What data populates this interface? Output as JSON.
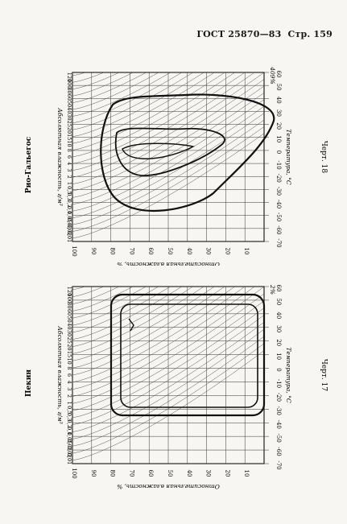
{
  "header": {
    "standard": "ГОСТ 25870—83",
    "page_label": "Стр. 159"
  },
  "chart_data": [
    {
      "type": "line",
      "location": "Рио-Гальегос",
      "figure_label": "Черт. 18",
      "xlabel": "Температура, °С",
      "ylabel_left": "Относительная влажность, %",
      "ylabel_right": "Абсолютная влажность, г/м³",
      "corner_label": "409%",
      "x_ticks": [
        -70,
        -60,
        -50,
        -40,
        -30,
        -20,
        -10,
        0,
        10,
        20,
        30,
        40,
        50,
        60
      ],
      "rh_ticks": [
        100,
        90,
        80,
        70,
        60,
        50,
        40,
        30,
        20,
        10
      ],
      "ah_ticks": [
        "0,01",
        "0,02",
        "0,03",
        "0,05",
        "0,1",
        "0,2",
        "0,3",
        "0,5",
        "1",
        "2",
        "3",
        "4",
        "6",
        "8",
        "10",
        "15",
        "20",
        "25",
        "30",
        "40",
        "50",
        "60",
        "80",
        "100",
        "120"
      ],
      "xlim": [
        -70,
        60
      ],
      "ylim": [
        0,
        100
      ]
    },
    {
      "type": "line",
      "location": "Пекин",
      "figure_label": "Черт. 17",
      "xlabel": "Температура, °С",
      "ylabel_left": "Относительная влажность, %",
      "ylabel_right": "Абсолютная влажность, г/м³",
      "corner_label": "2%",
      "x_ticks": [
        -70,
        -60,
        -50,
        -40,
        -30,
        -20,
        -10,
        0,
        10,
        20,
        30,
        40,
        50,
        60
      ],
      "rh_ticks": [
        100,
        90,
        80,
        70,
        60,
        50,
        40,
        30,
        20,
        10
      ],
      "ah_ticks": [
        "0,01",
        "0,02",
        "0,03",
        "0,05",
        "0,1",
        "0,2",
        "0,3",
        "0,5",
        "1",
        "2",
        "3",
        "4",
        "6",
        "8",
        "10",
        "15",
        "20",
        "25",
        "30",
        "40",
        "50",
        "60",
        "80",
        "100",
        "120"
      ],
      "xlim": [
        -70,
        60
      ],
      "ylim": [
        0,
        100
      ]
    }
  ]
}
